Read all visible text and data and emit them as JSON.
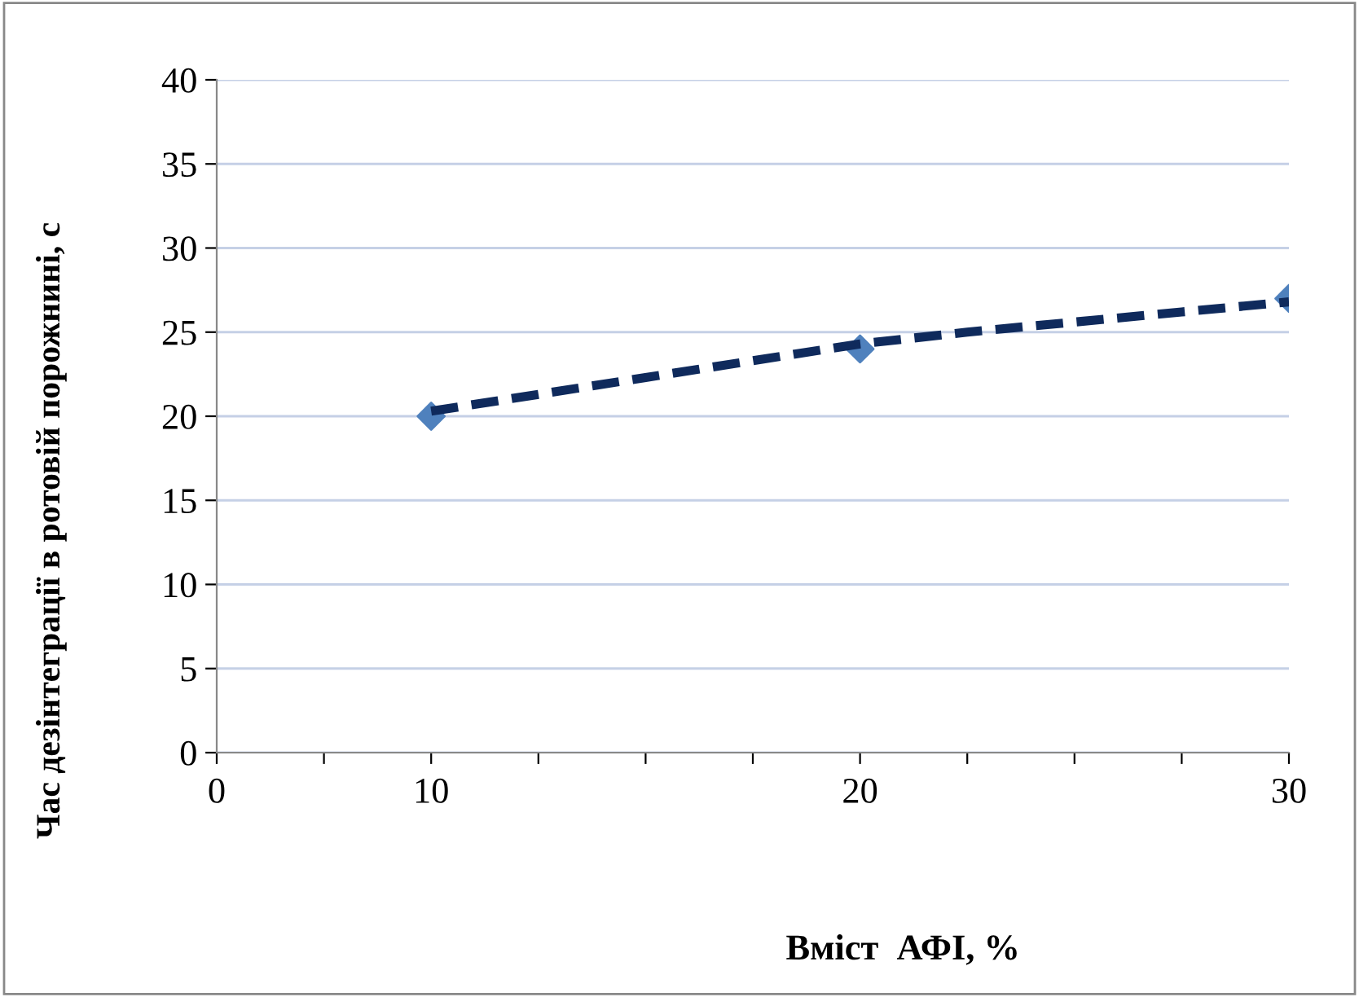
{
  "chart_data": {
    "type": "scatter",
    "xlabel": "Вміст  АФІ, %",
    "ylabel": "Час дезінтеграції в ротовій порожнині, с",
    "categories": [
      "0",
      null,
      "10",
      null,
      null,
      null,
      "20",
      null,
      null,
      null,
      "30"
    ],
    "series": [
      {
        "color": "#4f81bd",
        "marker": "diamond",
        "values": [
          null,
          null,
          20,
          null,
          null,
          null,
          24,
          null,
          null,
          null,
          27
        ]
      },
      {
        "type": "line",
        "color": "#0f2a5c",
        "line_style": "dashed",
        "values": [
          null,
          null,
          20.3,
          21.3,
          22.3,
          23.3,
          24.3,
          25.0,
          25.6,
          26.2,
          26.8
        ]
      }
    ],
    "ylim": [
      0,
      40
    ],
    "yticks": [
      0,
      5,
      10,
      15,
      20,
      25,
      30,
      35,
      40
    ],
    "grid": "y"
  }
}
